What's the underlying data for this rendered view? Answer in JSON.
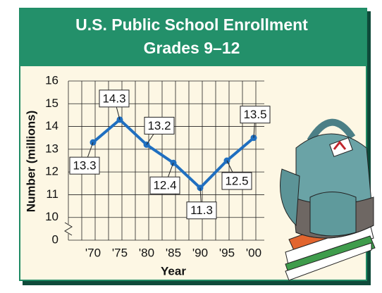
{
  "chart_data": {
    "type": "line",
    "title": [
      "U.S. Public School Enrollment",
      "Grades 9–12"
    ],
    "x_label": "Year",
    "y_label": "Number (millions)",
    "categories": [
      "'70",
      "'75",
      "'80",
      "'85",
      "'90",
      "'95",
      "'00"
    ],
    "values": [
      13.3,
      14.3,
      13.2,
      12.4,
      11.3,
      12.5,
      13.5
    ],
    "color": "#1f6fc0",
    "ylim": [
      9,
      16
    ],
    "yticks": [
      0,
      10,
      11,
      12,
      13,
      14,
      15,
      16
    ],
    "axis_break": true,
    "grid": true
  }
}
